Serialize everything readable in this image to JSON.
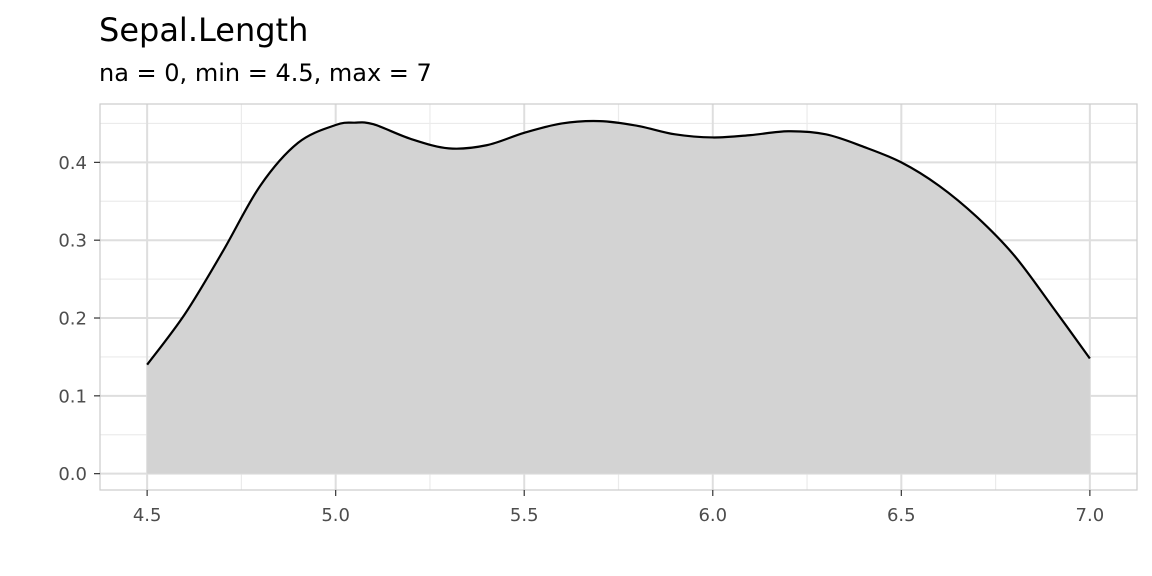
{
  "chart_data": {
    "type": "area",
    "title": "Sepal.Length",
    "subtitle": "na = 0, min = 4.5, max = 7",
    "xlabel": "",
    "ylabel": "",
    "xlim": [
      4.375,
      7.125
    ],
    "ylim": [
      -0.021,
      0.475
    ],
    "x_ticks": [
      "4.5",
      "5.0",
      "5.5",
      "6.0",
      "6.5",
      "7.0"
    ],
    "y_ticks": [
      "0.0",
      "0.1",
      "0.2",
      "0.3",
      "0.4"
    ],
    "grid": true,
    "legend": "none",
    "fill_color": "#d3d3d3",
    "line_color": "#000000",
    "series": [
      {
        "x": [
          4.5,
          4.6,
          4.7,
          4.8,
          4.9,
          5.0,
          5.05,
          5.1,
          5.2,
          5.3,
          5.4,
          5.5,
          5.6,
          5.7,
          5.8,
          5.9,
          6.0,
          6.1,
          6.2,
          6.3,
          6.4,
          6.5,
          6.6,
          6.7,
          6.8,
          6.9,
          7.0
        ],
        "y": [
          0.14,
          0.205,
          0.285,
          0.37,
          0.425,
          0.448,
          0.451,
          0.449,
          0.43,
          0.418,
          0.422,
          0.438,
          0.45,
          0.453,
          0.447,
          0.436,
          0.432,
          0.435,
          0.44,
          0.436,
          0.42,
          0.4,
          0.37,
          0.33,
          0.28,
          0.215,
          0.148
        ]
      }
    ]
  }
}
